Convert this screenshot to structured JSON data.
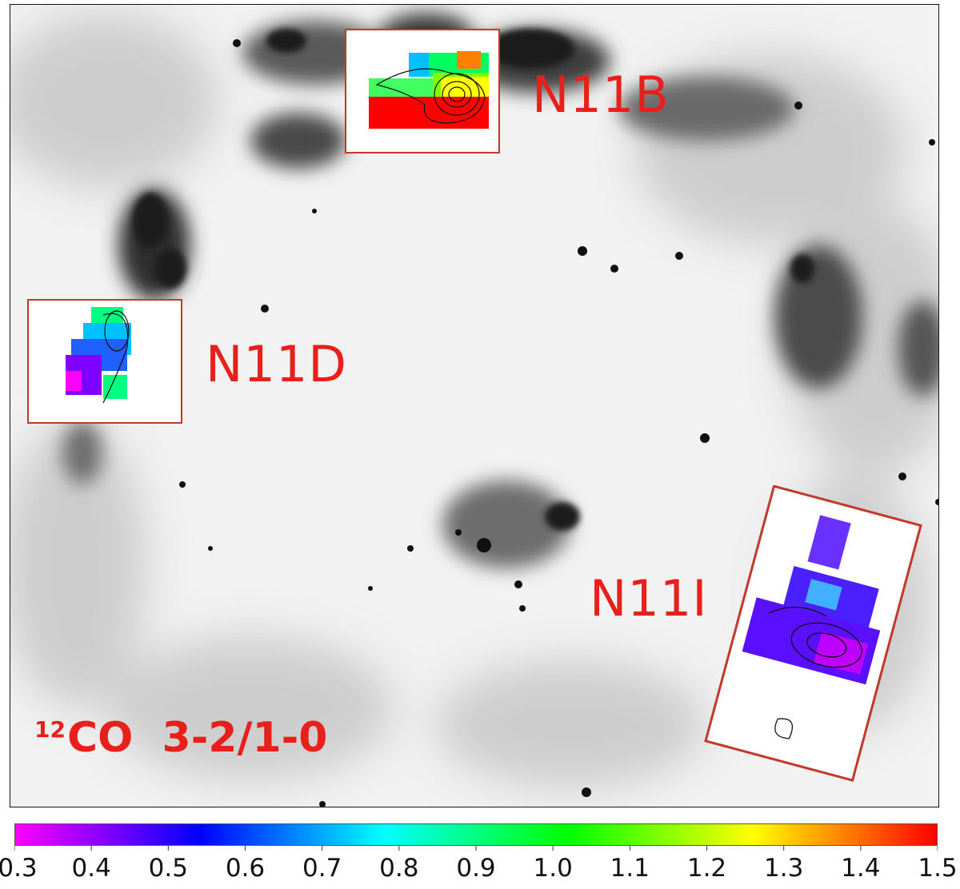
{
  "regions": [
    {
      "label": "N11B"
    },
    {
      "label": "N11D"
    },
    {
      "label": "N11I"
    }
  ],
  "ratio_label": {
    "isotope": "12",
    "text": "CO  3-2/1-0"
  },
  "colorbar": {
    "min": 0.3,
    "max": 1.5,
    "ticks": [
      "0.3",
      "0.4",
      "0.5",
      "0.6",
      "0.7",
      "0.8",
      "0.9",
      "1.0",
      "1.1",
      "1.2",
      "1.3",
      "1.4",
      "1.5"
    ],
    "colormap": [
      "#ff00ff",
      "#8000ff",
      "#0000ff",
      "#0080ff",
      "#00ffff",
      "#00ff80",
      "#00ff00",
      "#80ff00",
      "#ffff00",
      "#ff8000",
      "#ff0000"
    ]
  },
  "colors": {
    "label": "#e8201c",
    "inset_border": "#c0392b"
  }
}
